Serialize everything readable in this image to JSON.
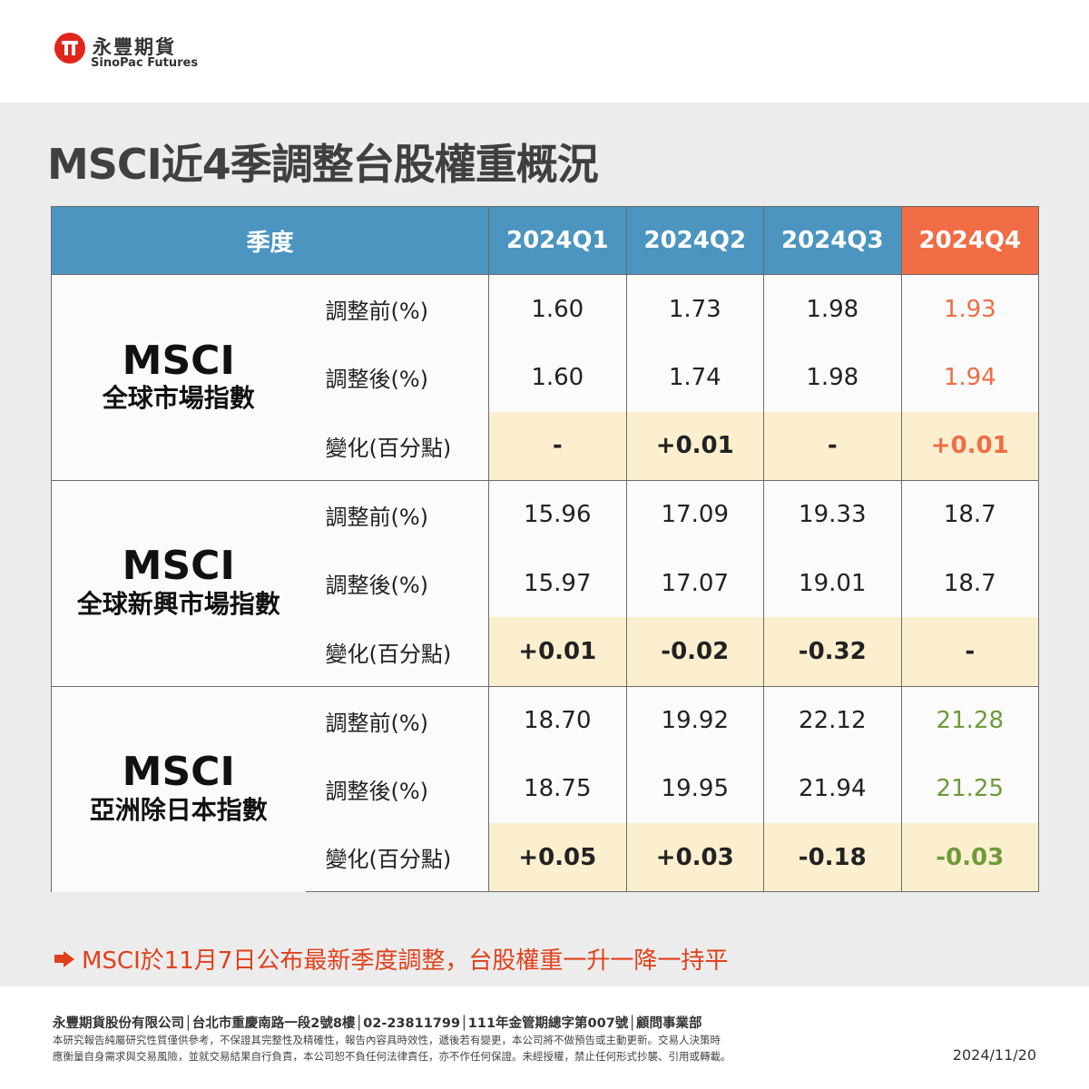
{
  "header": {
    "brand_cn": "永豐期貨",
    "brand_en": "SinoPac Futures"
  },
  "title": "MSCI近4季調整台股權重概況",
  "table": {
    "header": [
      "季度",
      "2024Q1",
      "2024Q2",
      "2024Q3",
      "2024Q4"
    ],
    "groups": [
      {
        "name": "MSCI",
        "sub": "全球市場指數",
        "rows": [
          {
            "label": "調整前(%)",
            "values": [
              "1.60",
              "1.73",
              "1.98",
              "1.93"
            ]
          },
          {
            "label": "調整後(%)",
            "values": [
              "1.60",
              "1.74",
              "1.98",
              "1.94"
            ]
          },
          {
            "label": "變化(百分點)",
            "values": [
              "-",
              "+0.01",
              "-",
              "+0.01"
            ]
          }
        ]
      },
      {
        "name": "MSCI",
        "sub": "全球新興市場指數",
        "rows": [
          {
            "label": "調整前(%)",
            "values": [
              "15.96",
              "17.09",
              "19.33",
              "18.7"
            ]
          },
          {
            "label": "調整後(%)",
            "values": [
              "15.97",
              "17.07",
              "19.01",
              "18.7"
            ]
          },
          {
            "label": "變化(百分點)",
            "values": [
              "+0.01",
              "-0.02",
              "-0.32",
              "-"
            ]
          }
        ]
      },
      {
        "name": "MSCI",
        "sub": "亞洲除日本指數",
        "rows": [
          {
            "label": "調整前(%)",
            "values": [
              "18.70",
              "19.92",
              "22.12",
              "21.28"
            ]
          },
          {
            "label": "調整後(%)",
            "values": [
              "18.75",
              "19.95",
              "21.94",
              "21.25"
            ]
          },
          {
            "label": "變化(百分點)",
            "values": [
              "+0.05",
              "+0.03",
              "-0.18",
              "-0.03"
            ]
          }
        ]
      }
    ]
  },
  "note": "MSCI於11月7日公布最新季度調整，台股權重一升一降一持平",
  "footer": {
    "company": "永豐期貨股份有限公司│台北市重慶南路一段2號8樓│02-23811799│111年金管期總字第007號│顧問事業部",
    "disclaimer1": "本研究報告純屬研究性質僅供參考，不保證其完整性及精確性，報告內容具時效性，遞後若有變更，本公司將不做預告或主動更新。交易人決策時",
    "disclaimer2": "應衡量自身需求與交易風險，並就交易結果自行負責，本公司恕不負任何法律責任，亦不作任何保證。未經授權，禁止任何形式抄襲、引用或轉載。",
    "date": "2024/11/20"
  },
  "colors": {
    "header_blue": "#4b95c0",
    "q4_orange": "#f06d45",
    "change_row_bg": "#fcefcf",
    "q4_group3_green": "#6f9a3a",
    "note_red": "#e0401c"
  }
}
